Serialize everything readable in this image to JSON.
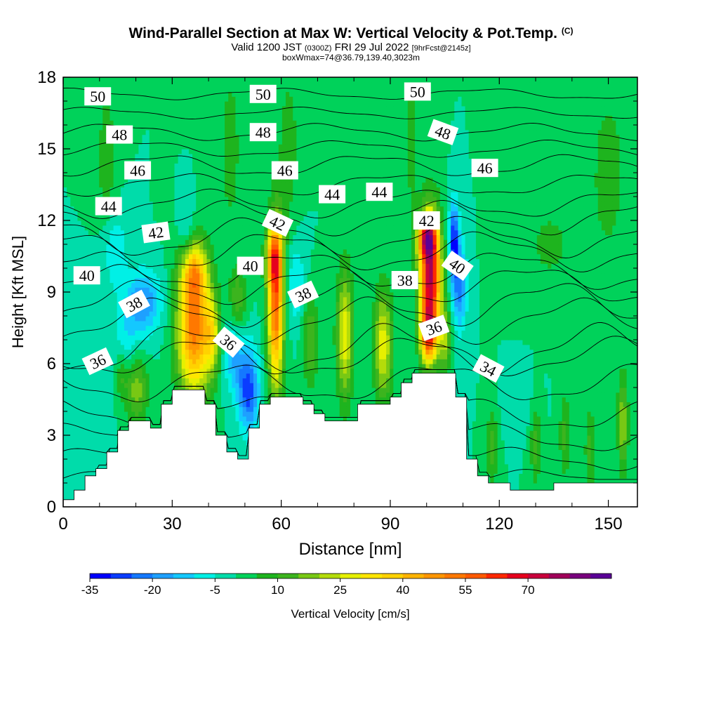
{
  "title": {
    "main": "Wind-Parallel Section at Max W: Vertical Velocity & Pot.Temp.",
    "copyright": "(C)",
    "valid_prefix": "Valid 1200 JST",
    "utc": "(0300Z)",
    "date": "FRI 29 Jul 2022",
    "forecast": "[9hrFcst@2145z]",
    "box": "boxWmax=74@36.79,139.40,3023m"
  },
  "chart_data": {
    "type": "heatmap",
    "xlabel": "Distance [nm]",
    "ylabel": "Height [Kft MSL]",
    "xlim": [
      0,
      158
    ],
    "ylim": [
      0,
      18
    ],
    "xticks": [
      0,
      30,
      60,
      90,
      120,
      150
    ],
    "yticks": [
      0,
      3,
      6,
      9,
      12,
      15,
      18
    ],
    "colorbar": {
      "label": "Vertical Velocity [cm/s]",
      "ticks": [
        -35,
        -20,
        -5,
        10,
        25,
        40,
        55,
        70
      ],
      "levels": [
        -35,
        -30,
        -25,
        -20,
        -15,
        -10,
        -5,
        0,
        5,
        10,
        15,
        20,
        25,
        30,
        35,
        40,
        45,
        50,
        55,
        60,
        65,
        70,
        75,
        80,
        85
      ],
      "colors": [
        "#0000ff",
        "#0a3cff",
        "#1478ff",
        "#1ea0ff",
        "#14c8ff",
        "#00f0e6",
        "#00dcaa",
        "#00d25a",
        "#1eb41e",
        "#3cb41e",
        "#78c814",
        "#b4dc0a",
        "#e6f000",
        "#ffe600",
        "#ffd200",
        "#ffb400",
        "#ff9600",
        "#ff7800",
        "#ff5a00",
        "#ff2800",
        "#e6001e",
        "#c8003c",
        "#a0005a",
        "#78007d",
        "#5a0096"
      ]
    },
    "background_value": 0,
    "features": [
      {
        "x": 22,
        "y": 8.6,
        "sx": 3.5,
        "sy": 0.9,
        "v": -20
      },
      {
        "x": 18,
        "y": 6.2,
        "sx": 3,
        "sy": 1.2,
        "v": -15
      },
      {
        "x": 14,
        "y": 10.8,
        "sx": 2.5,
        "sy": 1.2,
        "v": -10
      },
      {
        "x": 20,
        "y": 5.2,
        "sx": 2.2,
        "sy": 1.1,
        "v": 25
      },
      {
        "x": 16,
        "y": 5.6,
        "sx": 1.4,
        "sy": 0.8,
        "v": 15
      },
      {
        "x": 36,
        "y": 7.4,
        "sx": 3.2,
        "sy": 1.9,
        "v": 52
      },
      {
        "x": 36,
        "y": 9.9,
        "sx": 2.5,
        "sy": 0.9,
        "v": 30
      },
      {
        "x": 41,
        "y": 7.2,
        "sx": 1.5,
        "sy": 1.1,
        "v": 22
      },
      {
        "x": 51,
        "y": 4.9,
        "sx": 2,
        "sy": 1.2,
        "v": -28
      },
      {
        "x": 47,
        "y": 6.4,
        "sx": 2,
        "sy": 1.1,
        "v": -15
      },
      {
        "x": 58.5,
        "y": 8.4,
        "sx": 1.5,
        "sy": 2.4,
        "v": 55
      },
      {
        "x": 58,
        "y": 10.5,
        "sx": 1.6,
        "sy": 0.9,
        "v": 32
      },
      {
        "x": 64,
        "y": 9.4,
        "sx": 2,
        "sy": 1.2,
        "v": -10
      },
      {
        "x": 77.5,
        "y": 7.2,
        "sx": 1.6,
        "sy": 1.9,
        "v": 28
      },
      {
        "x": 88,
        "y": 6.8,
        "sx": 1.8,
        "sy": 1.6,
        "v": 28
      },
      {
        "x": 101,
        "y": 9.6,
        "sx": 2,
        "sy": 1.8,
        "v": 75
      },
      {
        "x": 100.5,
        "y": 7.2,
        "sx": 1.5,
        "sy": 0.8,
        "v": 45
      },
      {
        "x": 100,
        "y": 11.3,
        "sx": 1.8,
        "sy": 0.6,
        "v": 45
      },
      {
        "x": 107.5,
        "y": 11.2,
        "sx": 0.9,
        "sy": 1.1,
        "v": -30
      },
      {
        "x": 109,
        "y": 9.3,
        "sx": 1.4,
        "sy": 1.3,
        "v": -22
      },
      {
        "x": 105,
        "y": 7.0,
        "sx": 1.2,
        "sy": 0.9,
        "v": 20
      },
      {
        "x": 34,
        "y": 11.4,
        "sx": 1.5,
        "sy": 1,
        "v": -10
      },
      {
        "x": 48,
        "y": 8.6,
        "sx": 1.6,
        "sy": 1,
        "v": 15
      },
      {
        "x": 68,
        "y": 7.0,
        "sx": 1.5,
        "sy": 1.4,
        "v": 15
      },
      {
        "x": 125,
        "y": 4.6,
        "sx": 2.5,
        "sy": 0.8,
        "v": -5
      },
      {
        "x": 154,
        "y": 3.5,
        "sx": 1,
        "sy": 1.4,
        "v": 20
      },
      {
        "x": 118,
        "y": 2.5,
        "sx": 1,
        "sy": 1.2,
        "v": 12
      },
      {
        "x": 130,
        "y": 2.6,
        "sx": 1,
        "sy": 1.2,
        "v": 12
      },
      {
        "x": 138,
        "y": 3.0,
        "sx": 1,
        "sy": 1.2,
        "v": 12
      },
      {
        "x": 145,
        "y": 2.4,
        "sx": 1,
        "sy": 1.2,
        "v": 12
      },
      {
        "x": 12,
        "y": 14.5,
        "sx": 2,
        "sy": 2.5,
        "v": 8
      },
      {
        "x": 46,
        "y": 15,
        "sx": 2,
        "sy": 2.5,
        "v": 8
      },
      {
        "x": 62,
        "y": 15,
        "sx": 2,
        "sy": 2.5,
        "v": 8
      },
      {
        "x": 96,
        "y": 15.5,
        "sx": 1.2,
        "sy": 2.5,
        "v": 8
      },
      {
        "x": 150,
        "y": 14,
        "sx": 4,
        "sy": 3,
        "v": 7
      },
      {
        "x": 134,
        "y": 11,
        "sx": 6,
        "sy": 1.5,
        "v": 6
      }
    ],
    "terrain": {
      "x": [
        0,
        3,
        6,
        9,
        12,
        15,
        18,
        21,
        24,
        27,
        30,
        33,
        36,
        39,
        42,
        45,
        48,
        51,
        54,
        57,
        60,
        63,
        66,
        69,
        72,
        75,
        78,
        81,
        84,
        87,
        90,
        93,
        96,
        99,
        102,
        105,
        108,
        111,
        114,
        117,
        120,
        123,
        126,
        129,
        132,
        135,
        138,
        141,
        144,
        147,
        150,
        153,
        156,
        158
      ],
      "top": [
        0.3,
        0.7,
        1.3,
        1.6,
        2.3,
        3.2,
        3.6,
        3.6,
        3.3,
        4.3,
        4.9,
        4.9,
        4.9,
        4.3,
        3.0,
        2.3,
        2.0,
        3.3,
        4.3,
        4.6,
        4.6,
        4.6,
        4.3,
        3.9,
        3.6,
        3.6,
        3.6,
        4.3,
        4.3,
        4.3,
        4.6,
        5.2,
        5.6,
        5.6,
        5.6,
        5.6,
        4.6,
        2.0,
        1.3,
        1.0,
        1.0,
        0.7,
        0.7,
        0.7,
        0.7,
        1.0,
        1.0,
        1.0,
        1.0,
        1.0,
        1.0,
        1.0,
        1.0,
        1.0
      ]
    },
    "isentropes": [
      {
        "level": "30",
        "y0": 1.2,
        "amp": 0.3
      },
      {
        "level": "31",
        "y0": 2.0,
        "amp": 0.4
      },
      {
        "level": "32",
        "y0": 2.9,
        "amp": 0.5
      },
      {
        "level": "33",
        "y0": 3.9,
        "amp": 0.6
      },
      {
        "level": "34",
        "y0": 5.2,
        "amp": 0.7
      },
      {
        "level": "35",
        "y0": 6.3,
        "amp": 0.7
      },
      {
        "level": "36",
        "y0": 6.6,
        "amp": 0.9
      },
      {
        "level": "37",
        "y0": 7.8,
        "amp": 0.8
      },
      {
        "level": "38",
        "y0": 8.5,
        "amp": 0.8
      },
      {
        "level": "39",
        "y0": 9.3,
        "amp": 0.7
      },
      {
        "level": "40",
        "y0": 9.9,
        "amp": 0.7
      },
      {
        "level": "41",
        "y0": 10.7,
        "amp": 0.7
      },
      {
        "level": "42",
        "y0": 11.3,
        "amp": 0.7
      },
      {
        "level": "43",
        "y0": 12.1,
        "amp": 0.6
      },
      {
        "level": "44",
        "y0": 12.7,
        "amp": 0.5
      },
      {
        "level": "45",
        "y0": 13.5,
        "amp": 0.4
      },
      {
        "level": "46",
        "y0": 14.3,
        "amp": 0.4
      },
      {
        "level": "47",
        "y0": 15.0,
        "amp": 0.3
      },
      {
        "level": "48",
        "y0": 15.7,
        "amp": 0.3
      },
      {
        "level": "49",
        "y0": 16.5,
        "amp": 0.2
      },
      {
        "level": "50",
        "y0": 17.3,
        "amp": 0.2
      }
    ],
    "annotations": [
      {
        "text": "50",
        "x": 9.5,
        "y": 17.2,
        "angle": 0
      },
      {
        "text": "50",
        "x": 55,
        "y": 17.3,
        "angle": 0
      },
      {
        "text": "50",
        "x": 97.5,
        "y": 17.4,
        "angle": 0
      },
      {
        "text": "48",
        "x": 15.5,
        "y": 15.6,
        "angle": 0
      },
      {
        "text": "48",
        "x": 55,
        "y": 15.7,
        "angle": 0
      },
      {
        "text": "48",
        "x": 104.5,
        "y": 15.7,
        "angle": 20
      },
      {
        "text": "46",
        "x": 20.5,
        "y": 14.1,
        "angle": 0
      },
      {
        "text": "46",
        "x": 61,
        "y": 14.1,
        "angle": 0
      },
      {
        "text": "46",
        "x": 116,
        "y": 14.2,
        "angle": 0
      },
      {
        "text": "44",
        "x": 12.5,
        "y": 12.6,
        "angle": 0
      },
      {
        "text": "44",
        "x": 74,
        "y": 13.1,
        "angle": 0
      },
      {
        "text": "44",
        "x": 87,
        "y": 13.2,
        "angle": 0
      },
      {
        "text": "42",
        "x": 25.5,
        "y": 11.5,
        "angle": -8
      },
      {
        "text": "42",
        "x": 59,
        "y": 11.9,
        "angle": 25
      },
      {
        "text": "42",
        "x": 100,
        "y": 12.0,
        "angle": 0
      },
      {
        "text": "40",
        "x": 6.5,
        "y": 9.7,
        "angle": 0
      },
      {
        "text": "40",
        "x": 51.5,
        "y": 10.1,
        "angle": 0
      },
      {
        "text": "40",
        "x": 108.5,
        "y": 10.1,
        "angle": 35
      },
      {
        "text": "38",
        "x": 19.5,
        "y": 8.5,
        "angle": -28
      },
      {
        "text": "38",
        "x": 66,
        "y": 8.9,
        "angle": -25
      },
      {
        "text": "38",
        "x": 94,
        "y": 9.5,
        "angle": 0
      },
      {
        "text": "36",
        "x": 9.5,
        "y": 6.1,
        "angle": -25
      },
      {
        "text": "36",
        "x": 45.5,
        "y": 6.9,
        "angle": 40
      },
      {
        "text": "36",
        "x": 102,
        "y": 7.5,
        "angle": -20
      },
      {
        "text": "34",
        "x": 117,
        "y": 5.8,
        "angle": 28
      }
    ]
  }
}
